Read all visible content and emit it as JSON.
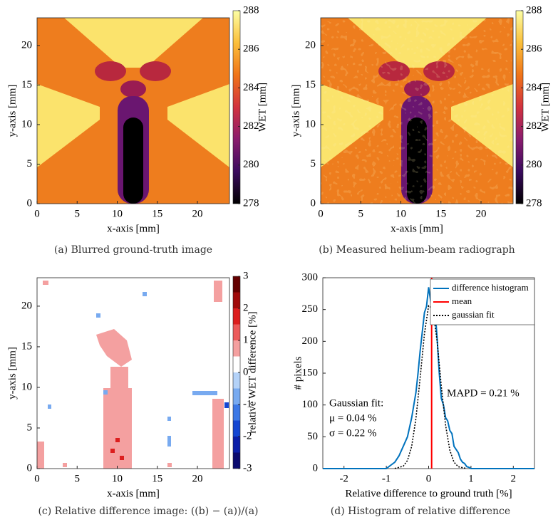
{
  "chart_data": [
    {
      "type": "heatmap",
      "caption": "(a) Blurred ground-truth image",
      "x_label": "x-axis [mm]",
      "y_label": "y-axis [mm]",
      "xlim": [
        0,
        24
      ],
      "ylim": [
        0,
        23.5
      ],
      "xticks": [
        0,
        5,
        10,
        15,
        20
      ],
      "yticks": [
        0,
        5,
        10,
        15,
        20
      ],
      "colorbar_label": "WET [mm]",
      "clim": [
        278,
        288
      ],
      "cticks": [
        278,
        280,
        282,
        284,
        286,
        288
      ],
      "discrete": false,
      "colormap": [
        "#000000",
        "#3a0a5e",
        "#8a1c6e",
        "#d2323f",
        "#f07418",
        "#fbbf3a",
        "#fcffa4"
      ]
    },
    {
      "type": "heatmap",
      "caption": "(b) Measured helium-beam radiograph",
      "x_label": "x-axis [mm]",
      "y_label": "y-axis [mm]",
      "xlim": [
        0,
        24
      ],
      "ylim": [
        0,
        23.5
      ],
      "xticks": [
        0,
        5,
        10,
        15,
        20
      ],
      "yticks": [
        0,
        5,
        10,
        15,
        20
      ],
      "colorbar_label": "WET [mm]",
      "clim": [
        278,
        288
      ],
      "cticks": [
        278,
        280,
        282,
        284,
        286,
        288
      ],
      "discrete": false,
      "colormap": [
        "#000000",
        "#3a0a5e",
        "#8a1c6e",
        "#d2323f",
        "#f07418",
        "#fbbf3a",
        "#fcffa4"
      ]
    },
    {
      "type": "heatmap",
      "caption": "(c) Relative difference image: ((b) − (a))/(a)",
      "x_label": "x-axis [mm]",
      "y_label": "y-axis [mm]",
      "xlim": [
        0,
        24
      ],
      "ylim": [
        0,
        23.5
      ],
      "xticks": [
        0,
        5,
        10,
        15,
        20
      ],
      "yticks": [
        0,
        5,
        10,
        15,
        20
      ],
      "colorbar_label": "relative WET difference [%]",
      "clim": [
        -3,
        3
      ],
      "cticks": [
        -3,
        -2,
        -1,
        0,
        1,
        2,
        3
      ],
      "discrete": true,
      "colormap": [
        "#0a0a6e",
        "#0a1ea8",
        "#1446d2",
        "#3c78e6",
        "#78aaf0",
        "#b4d2f8",
        "#ffffff",
        "#f4a0a0",
        "#ec5a5a",
        "#dc1e1e",
        "#a00a0a",
        "#640000"
      ]
    },
    {
      "type": "line",
      "caption": "(d) Histogram of relative difference",
      "x_label": "Relative difference to ground truth [%]",
      "y_label": "# pixels",
      "xlim": [
        -2.5,
        2.5
      ],
      "ylim": [
        0,
        300
      ],
      "xticks": [
        -2,
        -1,
        0,
        1,
        2
      ],
      "yticks": [
        0,
        50,
        100,
        150,
        200,
        250,
        300
      ],
      "legend": "upper right",
      "annotations": [
        "Gaussian fit:",
        "μ = 0.04 %",
        "σ = 0.22 %",
        "MAPD = 0.21 %"
      ],
      "series": [
        {
          "name": "difference histogram",
          "color": "#0072bd",
          "style": "solid",
          "x": [
            -2.5,
            -1.0,
            -0.9,
            -0.8,
            -0.7,
            -0.6,
            -0.5,
            -0.4,
            -0.3,
            -0.25,
            -0.2,
            -0.15,
            -0.1,
            -0.05,
            0,
            0.05,
            0.1,
            0.15,
            0.2,
            0.25,
            0.3,
            0.35,
            0.4,
            0.45,
            0.5,
            0.55,
            0.6,
            0.65,
            0.7,
            0.75,
            0.8,
            0.85,
            0.9,
            0.95,
            1.0,
            2.5
          ],
          "values": [
            0,
            0,
            5,
            10,
            20,
            35,
            50,
            80,
            120,
            150,
            185,
            215,
            245,
            255,
            285,
            262,
            245,
            250,
            205,
            150,
            110,
            100,
            80,
            75,
            60,
            55,
            35,
            30,
            25,
            15,
            10,
            8,
            3,
            2,
            0,
            0
          ]
        },
        {
          "name": "mean",
          "color": "#ff0000",
          "style": "solid",
          "x": [
            0.07,
            0.07
          ],
          "values": [
            0,
            300
          ]
        },
        {
          "name": "gaussian fit",
          "color": "#000000",
          "style": "dotted",
          "x": [
            -0.8,
            -0.6,
            -0.5,
            -0.4,
            -0.3,
            -0.2,
            -0.1,
            0,
            0.1,
            0.2,
            0.3,
            0.4,
            0.5,
            0.6,
            0.7,
            0.9
          ],
          "values": [
            0.2,
            3.8,
            12.8,
            35,
            79,
            143,
            212,
            256,
            251,
            200,
            129,
            68,
            29,
            10,
            2.9,
            0.1
          ]
        }
      ]
    }
  ]
}
